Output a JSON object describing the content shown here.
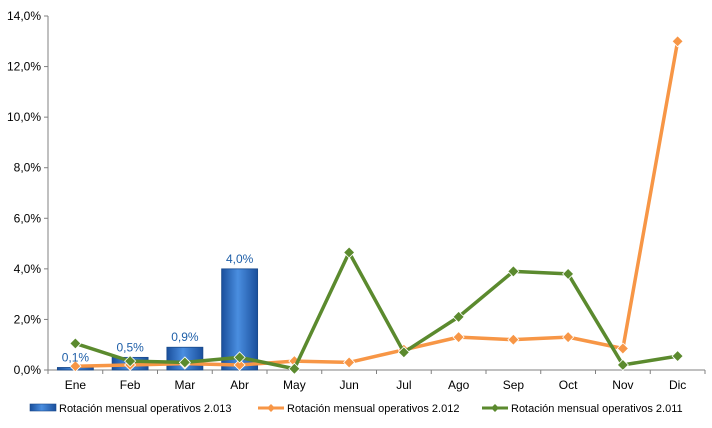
{
  "chart_data": {
    "type": "bar+line",
    "categories": [
      "Ene",
      "Feb",
      "Mar",
      "Abr",
      "May",
      "Jun",
      "Jul",
      "Ago",
      "Sep",
      "Oct",
      "Nov",
      "Dic"
    ],
    "ylim": [
      0,
      14
    ],
    "yticks": [
      "0,0%",
      "2,0%",
      "4,0%",
      "6,0%",
      "8,0%",
      "10,0%",
      "12,0%",
      "14,0%"
    ],
    "grid": false,
    "legend_position": "bottom",
    "series": [
      {
        "name": "Rotación mensual operativos 2.013",
        "type": "bar",
        "color": "#2e75c8",
        "values": [
          0.1,
          0.5,
          0.9,
          4.0,
          null,
          null,
          null,
          null,
          null,
          null,
          null,
          null
        ],
        "data_labels": [
          "0,1%",
          "0,5%",
          "0,9%",
          "4,0%",
          "",
          "",
          "",
          "",
          "",
          "",
          "",
          ""
        ]
      },
      {
        "name": "Rotación mensual operativos 2.012",
        "type": "line",
        "color": "#f79646",
        "values": [
          0.15,
          0.2,
          0.25,
          0.2,
          0.35,
          0.3,
          0.8,
          1.3,
          1.2,
          1.3,
          0.85,
          13.0
        ]
      },
      {
        "name": "Rotación mensual operativos 2.011",
        "type": "line",
        "color": "#5b8a2e",
        "values": [
          1.05,
          0.35,
          0.3,
          0.5,
          0.05,
          4.65,
          0.7,
          2.1,
          3.9,
          3.8,
          0.2,
          0.55
        ]
      }
    ]
  }
}
